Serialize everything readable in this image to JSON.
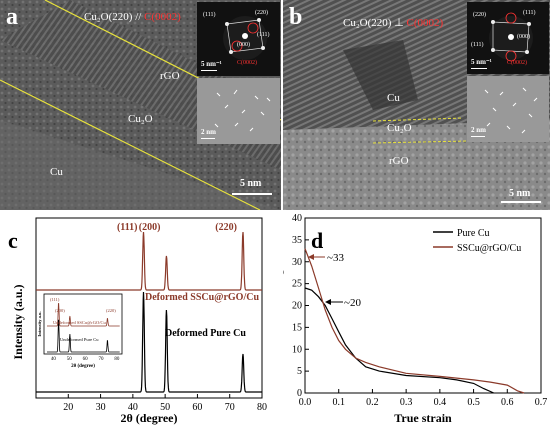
{
  "panel_a": {
    "letter": "a",
    "orientation_main": "Cu₂O(220) // ",
    "orientation_red": "C(0002)",
    "labels": {
      "rgo": "rGO",
      "cu2o": "Cu₂O",
      "cu": "Cu"
    },
    "fft": {
      "s1": "(111)",
      "s2": "(220)",
      "s3": "(111)",
      "s4": "(000)",
      "s5": "C(0002)"
    },
    "fft_scale": "5 nm⁻¹",
    "ifft_scale": "2 nm",
    "scale": "5 nm"
  },
  "panel_b": {
    "letter": "b",
    "orientation_main": "Cu₂O(220) ⊥ ",
    "orientation_red": "C(0002)",
    "labels": {
      "cu": "Cu",
      "cu2o": "Cu₂O",
      "rgo": "rGO"
    },
    "fft": {
      "s1": "(220)",
      "s2": "(111)",
      "s3": "(000)",
      "s4": "(111)",
      "s5": "C(0002)"
    },
    "fft_scale": "5 nm⁻¹",
    "ifft_scale": "2 nm",
    "scale": "5 nm"
  },
  "chart_data": [
    {
      "type": "line",
      "panel": "c",
      "xlabel": "2θ (degree)",
      "ylabel": "Intensity (a.u.)",
      "xlim": [
        10,
        80
      ],
      "xticks": [
        20,
        30,
        40,
        50,
        60,
        70,
        80
      ],
      "peaks": [
        {
          "label": "(111)",
          "x": 43.3
        },
        {
          "label": "(200)",
          "x": 50.4
        },
        {
          "label": "(220)",
          "x": 74.1
        }
      ],
      "series": [
        {
          "name": "Deformed SSCu@rGO/Cu",
          "color": "#8b3a2a"
        },
        {
          "name": "Deformed Pure Cu",
          "color": "#000000"
        }
      ],
      "inset": {
        "xlabel": "2θ (degree)",
        "ylabel": "Intensity a.u.",
        "xticks": [
          40,
          50,
          60,
          70,
          80
        ],
        "peaks": [
          "(111)",
          "(200)",
          "(220)"
        ],
        "series": [
          "Undeformed SSCu@rGO/Cu",
          "Undeformed Pure Cu"
        ]
      }
    },
    {
      "type": "line",
      "panel": "d",
      "xlabel": "True strain",
      "ylabel": "Normalized harding rate",
      "xlim": [
        0.0,
        0.7
      ],
      "ylim": [
        0,
        40
      ],
      "xticks": [
        0.0,
        0.1,
        0.2,
        0.3,
        0.4,
        0.5,
        0.6,
        0.7
      ],
      "yticks": [
        0,
        5,
        10,
        15,
        20,
        25,
        30,
        35,
        40
      ],
      "legend_position": "top-right",
      "annotations": [
        {
          "text": "~33",
          "x": 0.01,
          "y": 33
        },
        {
          "text": "~20",
          "x": 0.06,
          "y": 20
        }
      ],
      "series": [
        {
          "name": "Pure Cu",
          "color": "#000000",
          "x": [
            0.0,
            0.02,
            0.04,
            0.06,
            0.08,
            0.1,
            0.12,
            0.15,
            0.18,
            0.22,
            0.3,
            0.4,
            0.45,
            0.5,
            0.53,
            0.56
          ],
          "y": [
            24,
            23.5,
            22,
            20,
            17,
            14,
            11,
            8,
            6,
            5,
            4,
            3.5,
            3,
            2.2,
            1,
            0
          ]
        },
        {
          "name": "SSCu@rGO/Cu",
          "color": "#8b3a2a",
          "x": [
            0.0,
            0.02,
            0.04,
            0.06,
            0.08,
            0.1,
            0.12,
            0.15,
            0.18,
            0.22,
            0.3,
            0.4,
            0.5,
            0.55,
            0.6,
            0.63,
            0.65
          ],
          "y": [
            33,
            29,
            24,
            19,
            15,
            12,
            10,
            8,
            7,
            6,
            4.5,
            3.8,
            3,
            2.5,
            1.8,
            0.5,
            0
          ]
        }
      ]
    }
  ]
}
